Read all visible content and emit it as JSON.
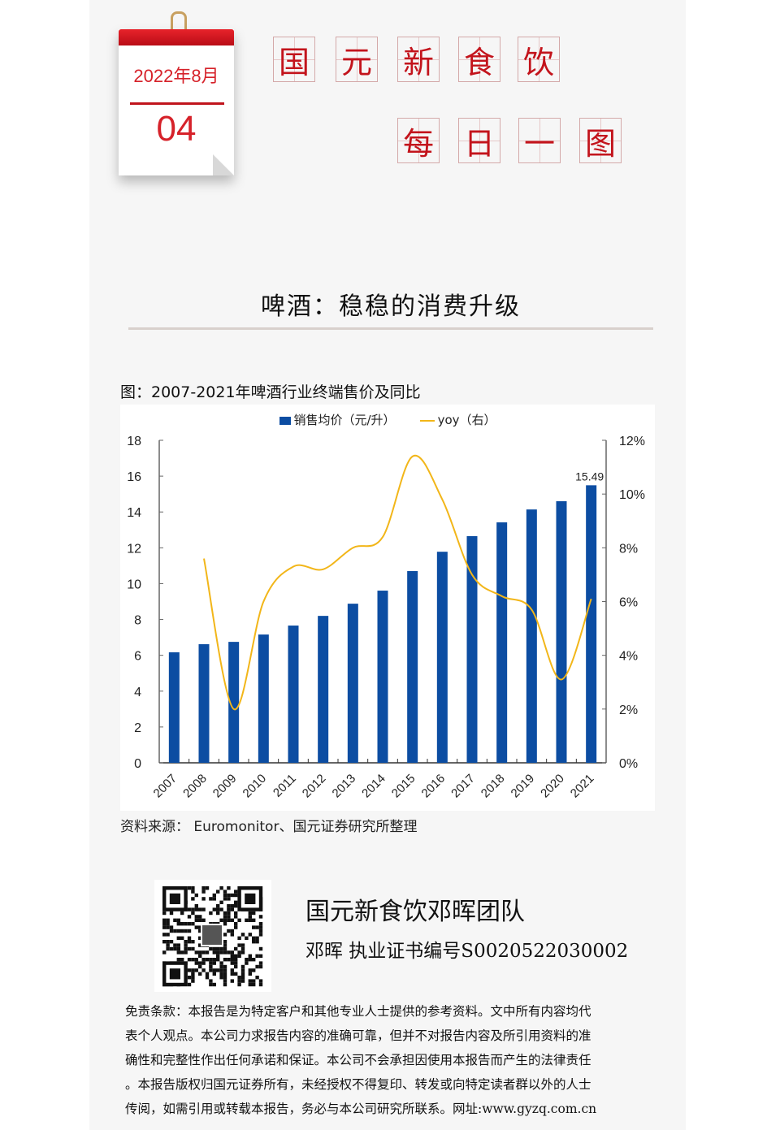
{
  "calendar": {
    "month_label": "2022年8月",
    "day": "04"
  },
  "brand_title": {
    "line1": [
      "国",
      "元",
      "新",
      "食",
      "饮"
    ],
    "line2": [
      "每",
      "日",
      "一",
      "图"
    ]
  },
  "headline": "啤酒：稳稳的消费升级",
  "figure_caption": "图：2007-2021年啤酒行业终端售价及同比",
  "legend": {
    "bar_label": "销售均价（元/升）",
    "line_label": "yoy（右）"
  },
  "colors": {
    "bar": "#0c4da2",
    "line": "#f2b619",
    "brand_red": "#c3141c"
  },
  "chart_data": {
    "type": "bar+line",
    "title": "2007-2021年啤酒行业终端售价及同比",
    "categories": [
      "2007",
      "2008",
      "2009",
      "2010",
      "2011",
      "2012",
      "2013",
      "2014",
      "2015",
      "2016",
      "2017",
      "2018",
      "2019",
      "2020",
      "2021"
    ],
    "series": [
      {
        "name": "销售均价（元/升）",
        "type": "bar",
        "axis": "left",
        "values": [
          6.17,
          6.62,
          6.75,
          7.16,
          7.66,
          8.2,
          8.88,
          9.61,
          10.7,
          11.78,
          12.65,
          13.42,
          14.14,
          14.6,
          15.49
        ]
      },
      {
        "name": "yoy（右）",
        "type": "line",
        "axis": "right",
        "unit": "%",
        "values": [
          null,
          7.6,
          2.0,
          6.0,
          7.3,
          7.2,
          8.0,
          8.4,
          11.4,
          9.8,
          7.0,
          6.2,
          5.7,
          3.1,
          6.1
        ]
      }
    ],
    "annotations": [
      {
        "category": "2021",
        "text": "15.49"
      }
    ],
    "left_axis": {
      "ylim": [
        0,
        18
      ],
      "ticks": [
        "0",
        "2",
        "4",
        "6",
        "8",
        "10",
        "12",
        "14",
        "16",
        "18"
      ]
    },
    "right_axis": {
      "ylim": [
        0,
        12
      ],
      "ticks": [
        "0%",
        "2%",
        "4%",
        "6%",
        "8%",
        "10%",
        "12%"
      ]
    },
    "xlabel": "",
    "ylabel": "",
    "grid": false,
    "legend_position": "top"
  },
  "source": "资料来源： Euromonitor、国元证券研究所整理",
  "team": {
    "title": "国元新食饮邓晖团队",
    "subtitle": "邓晖  执业证书编号S0020522030002"
  },
  "disclaimer": [
    "免责条款：本报告是为特定客户和其他专业人士提供的参考资料。文中所有内容均代",
    "表个人观点。本公司力求报告内容的准确可靠，但并不对报告内容及所引用资料的准",
    "确性和完整性作出任何承诺和保证。本公司不会承担因使用本报告而产生的法律责任",
    "。本报告版权归国元证券所有，未经授权不得复印、转发或向特定读者群以外的人士",
    "传阅，如需引用或转载本报告，务必与本公司研究所联系。网址:www.gyzq.com.cn"
  ]
}
